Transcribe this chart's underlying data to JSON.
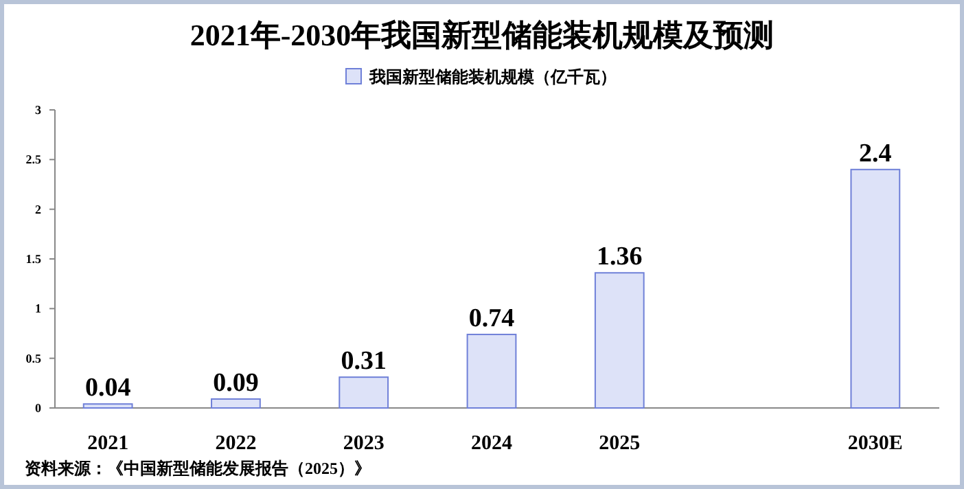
{
  "chart_data": {
    "type": "bar",
    "title": "2021年-2030年我国新型储能装机规模及预测",
    "categories": [
      "2021",
      "2022",
      "2023",
      "2024",
      "2025",
      null,
      "2030E"
    ],
    "series": [
      {
        "name": "我国新型储能装机规模（亿千瓦）",
        "color": "#dde2f8",
        "values": [
          0.04,
          0.09,
          0.31,
          0.74,
          1.36,
          null,
          2.4
        ]
      }
    ],
    "ylim": [
      0,
      3
    ],
    "yticks": [
      0,
      0.5,
      1,
      1.5,
      2,
      2.5,
      3
    ],
    "data_labels": true,
    "legend": "top",
    "grid": false,
    "annotations": [
      "资料来源：《中国新型储能发展报告（2025）》"
    ]
  }
}
